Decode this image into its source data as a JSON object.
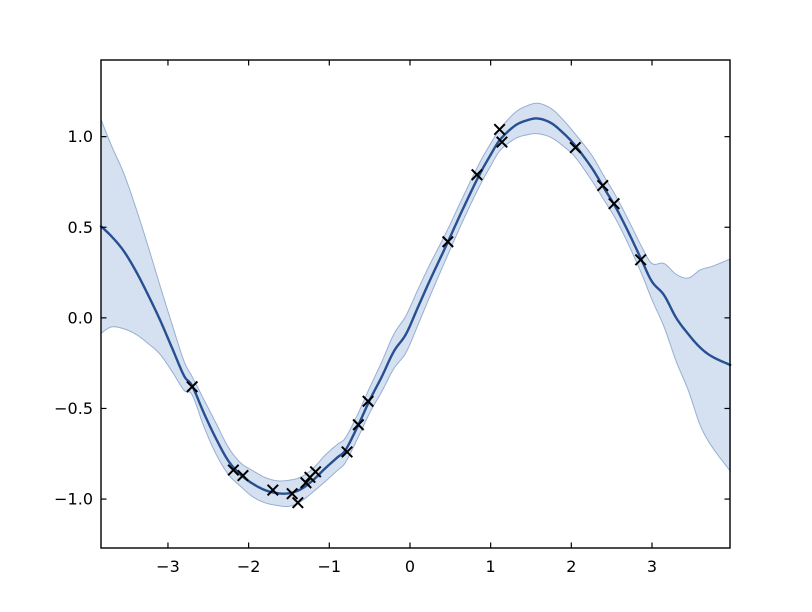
{
  "figure": {
    "title": "",
    "background": "#ffffff"
  },
  "chart_data": {
    "type": "line",
    "title": "",
    "xlabel": "",
    "ylabel": "",
    "grid": false,
    "legend": null,
    "xlim": [
      -3.83,
      3.967
    ],
    "ylim": [
      -1.27,
      1.423
    ],
    "xticks": {
      "values": [
        -3,
        -2,
        -1,
        0,
        1,
        2,
        3
      ],
      "labels": [
        "−3",
        "−2",
        "−1",
        "0",
        "1",
        "2",
        "3"
      ]
    },
    "yticks": {
      "values": [
        1.0,
        0.5,
        0.0,
        -0.5,
        -1.0
      ],
      "labels": [
        "1.0",
        "0.5",
        "0.0",
        "−0.5",
        "−1.0"
      ]
    },
    "mean_curve": {
      "name": "gp-posterior-mean",
      "x": [
        -3.83,
        -3.7,
        -3.55,
        -3.4,
        -3.25,
        -3.1,
        -2.95,
        -2.8,
        -2.7,
        -2.55,
        -2.4,
        -2.25,
        -2.1,
        -1.95,
        -1.8,
        -1.65,
        -1.5,
        -1.35,
        -1.2,
        -1.05,
        -0.9,
        -0.8,
        -0.65,
        -0.5,
        -0.35,
        -0.2,
        -0.05,
        0.1,
        0.25,
        0.45,
        0.65,
        0.85,
        1.0,
        1.12,
        1.3,
        1.45,
        1.59,
        1.75,
        1.9,
        2.05,
        2.25,
        2.4,
        2.55,
        2.7,
        2.87,
        3.0,
        3.15,
        3.3,
        3.45,
        3.6,
        3.75,
        3.97
      ],
      "y": [
        0.505,
        0.45,
        0.37,
        0.26,
        0.13,
        -0.01,
        -0.165,
        -0.32,
        -0.375,
        -0.53,
        -0.67,
        -0.79,
        -0.865,
        -0.915,
        -0.95,
        -0.967,
        -0.968,
        -0.945,
        -0.895,
        -0.83,
        -0.77,
        -0.73,
        -0.6,
        -0.455,
        -0.325,
        -0.185,
        -0.09,
        0.06,
        0.21,
        0.4,
        0.595,
        0.78,
        0.9,
        0.985,
        1.06,
        1.09,
        1.1,
        1.075,
        1.02,
        0.95,
        0.83,
        0.72,
        0.61,
        0.48,
        0.32,
        0.2,
        0.125,
        0.0,
        -0.09,
        -0.165,
        -0.215,
        -0.26
      ]
    },
    "confidence_band": {
      "name": "gp-uncertainty-band",
      "x": [
        -3.83,
        -3.7,
        -3.55,
        -3.4,
        -3.25,
        -3.1,
        -2.95,
        -2.8,
        -2.7,
        -2.55,
        -2.4,
        -2.25,
        -2.1,
        -1.95,
        -1.8,
        -1.65,
        -1.5,
        -1.35,
        -1.2,
        -1.05,
        -0.9,
        -0.8,
        -0.65,
        -0.5,
        -0.35,
        -0.2,
        -0.05,
        0.1,
        0.25,
        0.45,
        0.65,
        0.85,
        1.0,
        1.12,
        1.3,
        1.45,
        1.59,
        1.75,
        1.9,
        2.05,
        2.25,
        2.4,
        2.55,
        2.7,
        2.87,
        3.0,
        3.15,
        3.3,
        3.45,
        3.6,
        3.75,
        3.97
      ],
      "upper": [
        1.095,
        0.95,
        0.8,
        0.61,
        0.4,
        0.18,
        -0.035,
        -0.24,
        -0.325,
        -0.455,
        -0.585,
        -0.715,
        -0.8,
        -0.843,
        -0.88,
        -0.899,
        -0.896,
        -0.878,
        -0.83,
        -0.757,
        -0.698,
        -0.662,
        -0.534,
        -0.385,
        -0.243,
        -0.09,
        0.012,
        0.158,
        0.298,
        0.472,
        0.661,
        0.844,
        0.962,
        1.045,
        1.132,
        1.17,
        1.184,
        1.155,
        1.092,
        1.014,
        0.9,
        0.786,
        0.674,
        0.547,
        0.395,
        0.3,
        0.3,
        0.24,
        0.22,
        0.265,
        0.285,
        0.325
      ],
      "lower": [
        -0.085,
        -0.05,
        -0.06,
        -0.09,
        -0.14,
        -0.2,
        -0.295,
        -0.4,
        -0.425,
        -0.605,
        -0.755,
        -0.865,
        -0.93,
        -0.987,
        -1.02,
        -1.035,
        -1.04,
        -1.012,
        -0.96,
        -0.903,
        -0.842,
        -0.798,
        -0.666,
        -0.525,
        -0.407,
        -0.28,
        -0.192,
        -0.038,
        0.122,
        0.328,
        0.529,
        0.716,
        0.838,
        0.925,
        0.988,
        1.01,
        1.016,
        0.995,
        0.948,
        0.886,
        0.76,
        0.654,
        0.546,
        0.413,
        0.245,
        0.1,
        -0.05,
        -0.24,
        -0.4,
        -0.595,
        -0.715,
        -0.845
      ]
    },
    "observations": {
      "name": "training-points",
      "marker": "x",
      "x": [
        -2.7,
        -2.19,
        -2.07,
        -1.7,
        -1.46,
        -1.39,
        -1.29,
        -1.24,
        -1.17,
        -0.78,
        -0.64,
        -0.52,
        0.47,
        0.83,
        1.11,
        1.14,
        2.05,
        2.39,
        2.53,
        2.86
      ],
      "y": [
        -0.38,
        -0.84,
        -0.87,
        -0.95,
        -0.97,
        -1.02,
        -0.91,
        -0.88,
        -0.85,
        -0.74,
        -0.59,
        -0.46,
        0.42,
        0.79,
        1.04,
        0.97,
        0.94,
        0.73,
        0.63,
        0.32
      ]
    },
    "colors": {
      "mean_line": "#265091",
      "band_fill": "#d5e0f0",
      "band_edge": "#96afd2",
      "marker": "#000000",
      "axes": "#000000",
      "background": "#ffffff"
    },
    "style": {
      "mean_line_width": 2.4,
      "band_edge_width": 1,
      "marker_size": 10.5,
      "marker_stroke_width": 2,
      "tick_length": 5.5,
      "tick_direction": "in"
    }
  }
}
